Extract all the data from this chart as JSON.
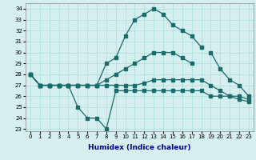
{
  "xlabel": "Humidex (Indice chaleur)",
  "x": [
    0,
    1,
    2,
    3,
    4,
    5,
    6,
    7,
    8,
    9,
    10,
    11,
    12,
    13,
    14,
    15,
    16,
    17,
    18,
    19,
    20,
    21,
    22,
    23
  ],
  "line_min": [
    28,
    27,
    27,
    27,
    27,
    25,
    24,
    24,
    23,
    26.5,
    26.5,
    26.5,
    26.5,
    26.5,
    26.5,
    26.5,
    26.5,
    26.5,
    26.5,
    26.0,
    26.0,
    26.0,
    26.0,
    25.7
  ],
  "line_max": [
    28,
    27,
    27,
    27,
    27,
    27,
    27,
    27,
    29,
    29.5,
    31.5,
    33,
    33.5,
    34,
    33.5,
    32.5,
    32,
    31.5,
    30.5,
    null,
    null,
    null,
    null,
    null
  ],
  "line_high": [
    28,
    27,
    27,
    27,
    27,
    27,
    27,
    27,
    27.5,
    28,
    28.5,
    29,
    29.5,
    30,
    30,
    30,
    29.5,
    29,
    null,
    30,
    28.5,
    27.5,
    27,
    26
  ],
  "line_low": [
    28,
    27,
    27,
    27,
    27,
    27,
    27,
    27,
    27,
    27,
    27,
    27,
    27.2,
    27.5,
    27.5,
    27.5,
    27.5,
    27.5,
    27.5,
    27,
    26.5,
    26,
    25.7,
    25.5
  ],
  "ylim_min": 22.8,
  "ylim_max": 34.5,
  "yticks": [
    23,
    24,
    25,
    26,
    27,
    28,
    29,
    30,
    31,
    32,
    33,
    34
  ],
  "color": "#1a6b6b",
  "bg_color": "#d5eeee",
  "grid_color": "#aadddd",
  "line_width": 0.9,
  "marker_size": 2.2
}
